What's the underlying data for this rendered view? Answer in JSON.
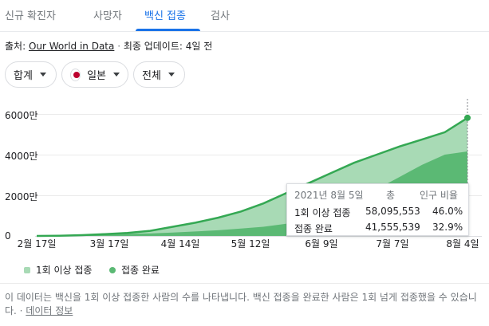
{
  "tabs": [
    {
      "label": "신규 확진자"
    },
    {
      "label": "사망자"
    },
    {
      "label": "백신 접종"
    },
    {
      "label": "검사"
    }
  ],
  "active_tab": "백신 접종",
  "source": {
    "prefix": "출처: ",
    "link": "Our World in Data",
    "separator": " · ",
    "updated": "최종 업데이트: 4일 전"
  },
  "filters": {
    "metric": "합계",
    "country": "일본",
    "range": "전체"
  },
  "colors": {
    "accent": "#1a73e8",
    "first_dose_area": "#a8dab5",
    "first_dose_line": "#34a853",
    "full_area": "#5bb974",
    "flag_red": "#bc002d"
  },
  "chart_data": {
    "type": "area",
    "ylabels": [
      "6000만",
      "4000만",
      "2000만",
      "0"
    ],
    "ylim": [
      0,
      60000000
    ],
    "xlabels": [
      "2월 17일",
      "3월 17일",
      "4월 14일",
      "5월 12일",
      "6월 9일",
      "7월 7일",
      "8월 4일"
    ],
    "grid": true,
    "x": [
      "2월 17일",
      "3월 3일",
      "3월 17일",
      "3월 31일",
      "4월 14일",
      "4월 28일",
      "5월 12일",
      "5월 19일",
      "5월 26일",
      "6월 2일",
      "6월 9일",
      "6월 16일",
      "6월 23일",
      "6월 30일",
      "7월 7일",
      "7월 14일",
      "7월 21일",
      "7월 28일",
      "8월 4일",
      "8월 5일"
    ],
    "series": [
      {
        "name": "1회 이상 접종",
        "values": [
          0,
          100000,
          400000,
          900000,
          1500000,
          2500000,
          4500000,
          6500000,
          9000000,
          12000000,
          16000000,
          21000000,
          26000000,
          31000000,
          36000000,
          40000000,
          44000000,
          47500000,
          51000000,
          58095553
        ]
      },
      {
        "name": "접종 완료",
        "values": [
          0,
          30000,
          200000,
          600000,
          1000000,
          1200000,
          1700000,
          2200000,
          2800000,
          3600000,
          4500000,
          6000000,
          8500000,
          12500000,
          17500000,
          23000000,
          29000000,
          35000000,
          40000000,
          41555539
        ]
      }
    ]
  },
  "tooltip": {
    "date": "2021년 8월 5일",
    "col_total": "총",
    "col_ratio": "인구 비율",
    "rows": [
      {
        "label": "1회 이상 접종",
        "total": "58,095,553",
        "ratio": "46.0%"
      },
      {
        "label": "접종 완료",
        "total": "41,555,539",
        "ratio": "32.9%"
      }
    ]
  },
  "legend": [
    {
      "label": "1회 이상 접종",
      "shape": "rounded-square",
      "color": "#a8dab5"
    },
    {
      "label": "접종 완료",
      "shape": "circle",
      "color": "#5bb974"
    }
  ],
  "description": {
    "text": "이 데이터는 백신을 1회 이상 접종한 사람의 수를 나타냅니다. 백신 접종을 완료한 사람은 1회 넘게 접종했을 수 있습니다.",
    "separator": " · ",
    "more_link": "데이터 정보"
  }
}
